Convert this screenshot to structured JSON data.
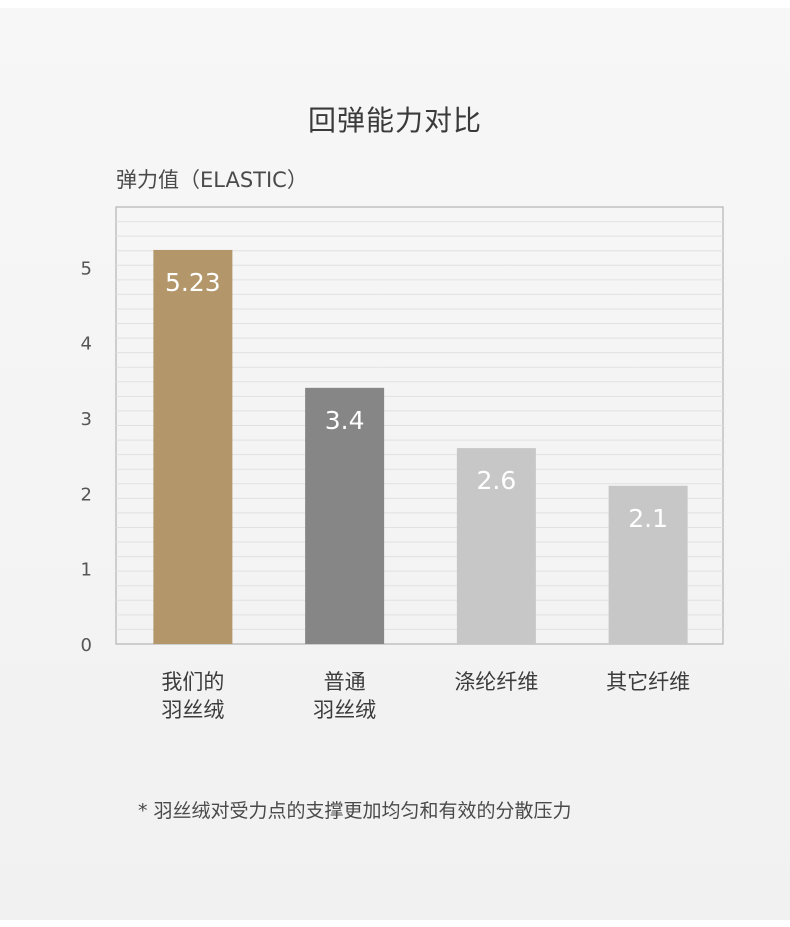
{
  "colors": {
    "accent_bar": "#b3976a",
    "bar_2": "#868686",
    "bar_3": "#c7c7c7",
    "bar_4": "#c7c7c7",
    "value_label": "#ffffff",
    "axis": "#b4b4b4",
    "grid": "#e1e1e1",
    "text": "#3c3c3c"
  },
  "chart_data": {
    "type": "bar",
    "title": "回弹能力对比",
    "ylabel": "弹力值（ELASTIC）",
    "xlabel": "",
    "ylim": [
      0,
      5.8
    ],
    "yticks": [
      0,
      1,
      2,
      3,
      4,
      5
    ],
    "grid": true,
    "categories": [
      [
        "我们的",
        "羽丝绒"
      ],
      [
        "普通",
        "羽丝绒"
      ],
      [
        "涤纶纤维"
      ],
      [
        "其它纤维"
      ]
    ],
    "values": [
      5.23,
      3.4,
      2.6,
      2.1
    ],
    "value_labels": [
      "5.23",
      "3.4",
      "2.6",
      "2.1"
    ]
  },
  "footnote": "* 羽丝绒对受力点的支撑更加均匀和有效的分散压力"
}
